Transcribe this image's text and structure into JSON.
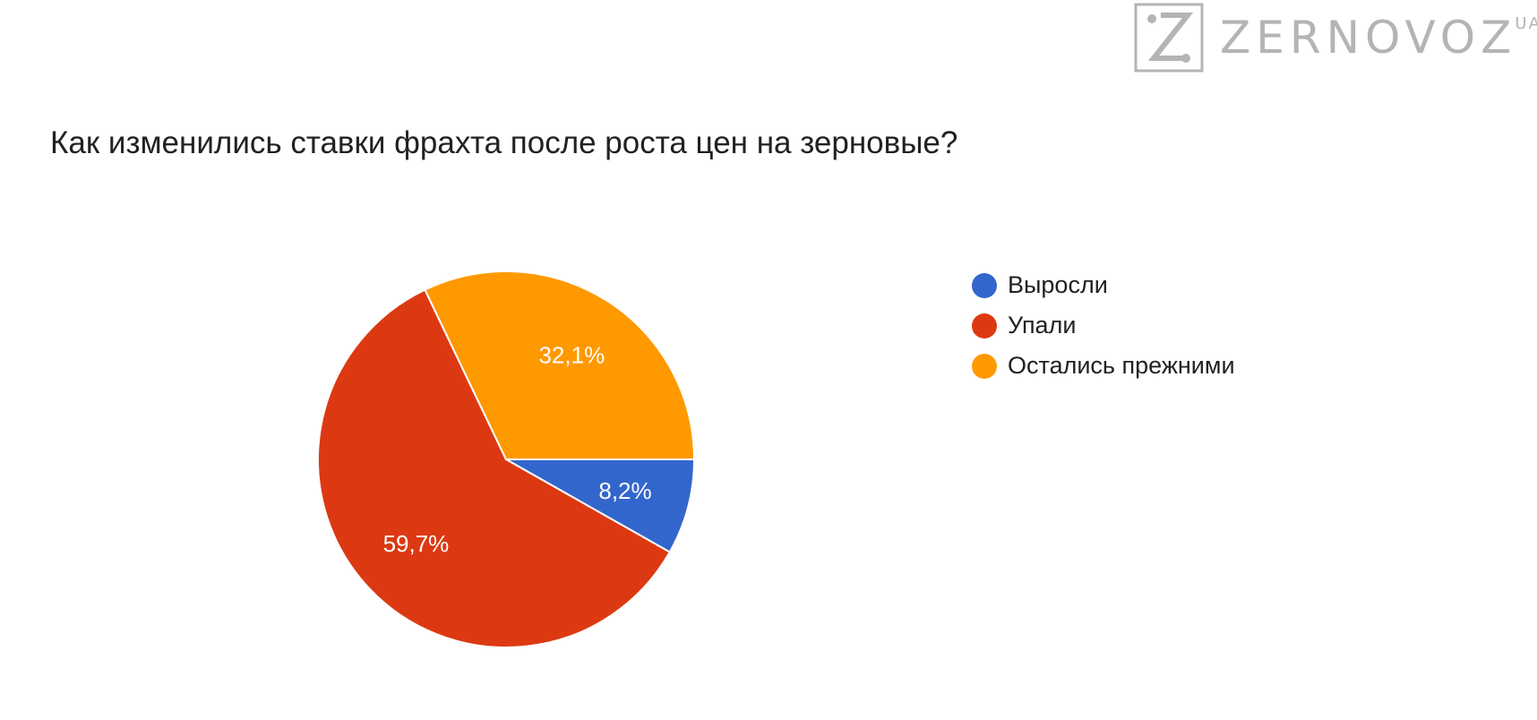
{
  "logo": {
    "text": "ZERNOVOZ",
    "suffix": "UA",
    "icon": "z-logo-icon",
    "color": "#b4b4b4"
  },
  "chart_data": {
    "type": "pie",
    "title": "Как изменились ставки фрахта после роста цен на зерновые?",
    "legend_position": "right",
    "series": [
      {
        "name": "Выросли",
        "value": 8.2,
        "label": "8,2%",
        "color": "#3366cc"
      },
      {
        "name": "Упали",
        "value": 59.7,
        "label": "59,7%",
        "color": "#dc3912"
      },
      {
        "name": "Остались прежними",
        "value": 32.1,
        "label": "32,1%",
        "color": "#ff9900"
      }
    ]
  }
}
